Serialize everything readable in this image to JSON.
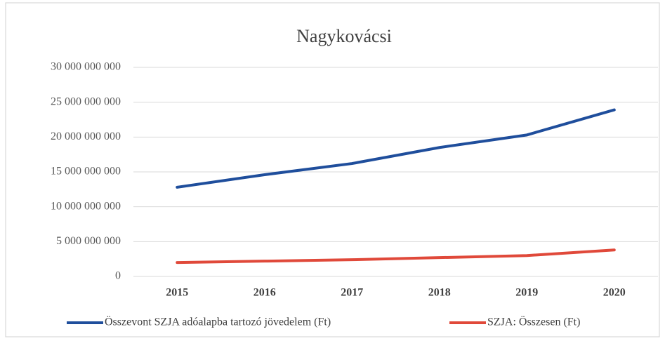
{
  "chart_data": {
    "type": "line",
    "title": "Nagykovácsi",
    "categories": [
      "2015",
      "2016",
      "2017",
      "2018",
      "2019",
      "2020"
    ],
    "series": [
      {
        "name": "Összevont SZJA adóalapba tartozó jövedelem (Ft)",
        "color": "#1f4e9c",
        "values": [
          12800000000,
          14600000000,
          16200000000,
          18500000000,
          20300000000,
          23900000000
        ]
      },
      {
        "name": "SZJA: Összesen (Ft)",
        "color": "#e0493a",
        "values": [
          2000000000,
          2200000000,
          2400000000,
          2700000000,
          3000000000,
          3800000000
        ]
      }
    ],
    "ylim": [
      0,
      30000000000
    ],
    "yticks": [
      0,
      {
        "value": 5000000000,
        "label": "5 000 000 000"
      },
      {
        "value": 10000000000,
        "label": "10 000 000 000"
      },
      {
        "value": 15000000000,
        "label": "15 000 000 000"
      },
      {
        "value": 20000000000,
        "label": "20 000 000 000"
      },
      {
        "value": 25000000000,
        "label": "25 000 000 000"
      },
      {
        "value": 30000000000,
        "label": "30 000 000 000"
      }
    ],
    "grid": true,
    "legend": "bottom"
  }
}
